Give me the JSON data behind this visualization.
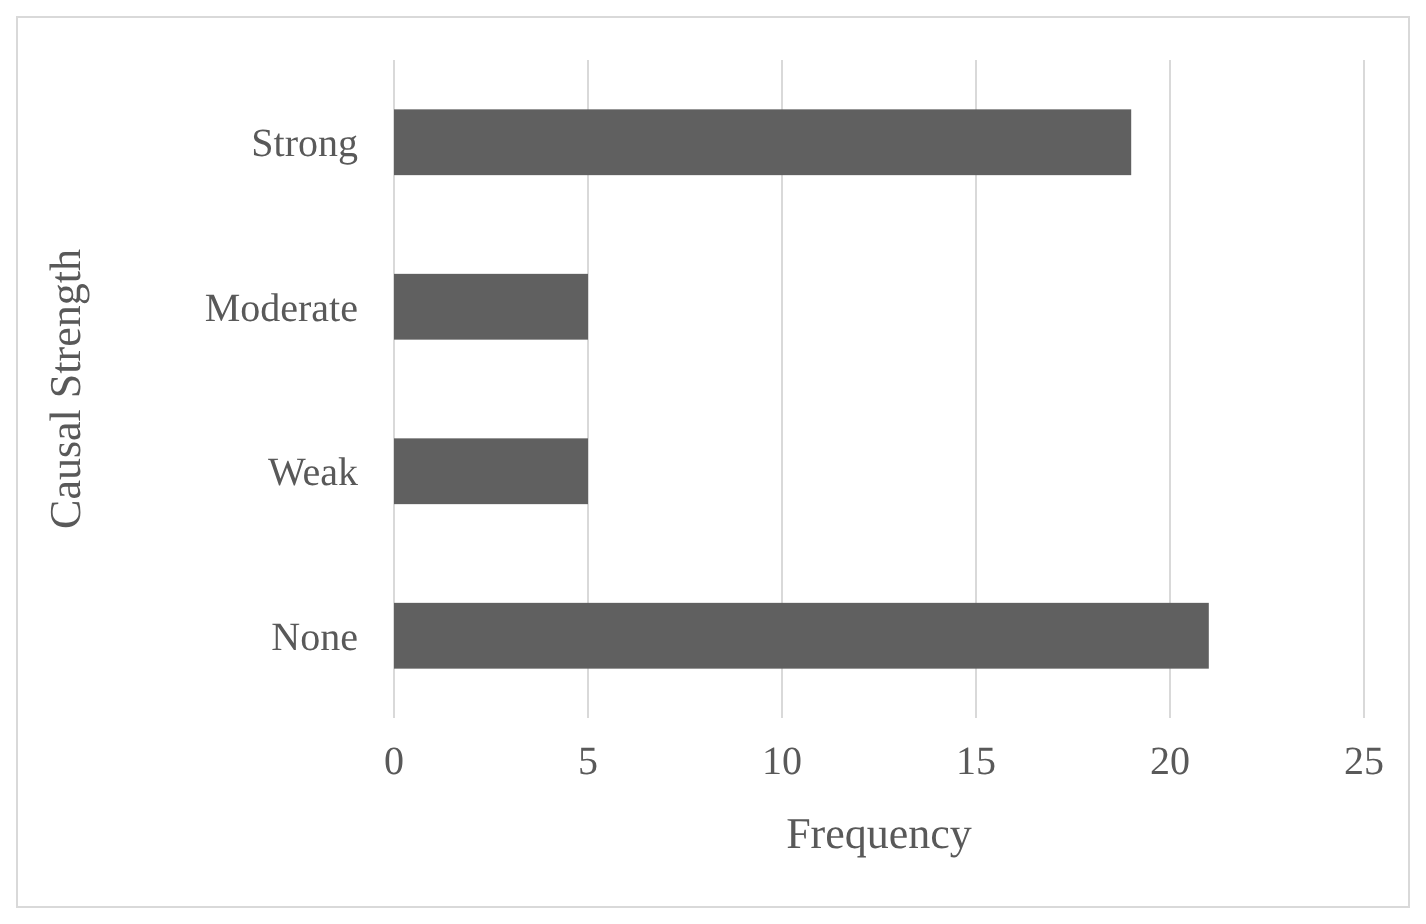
{
  "chart_data": {
    "type": "bar",
    "orientation": "horizontal",
    "xlabel": "Frequency",
    "ylabel": "Causal Strength",
    "categories": [
      "Strong",
      "Moderate",
      "Weak",
      "None"
    ],
    "values": [
      19,
      5,
      5,
      21
    ],
    "color": "#606060",
    "xlim": [
      0,
      25
    ],
    "xticks": [
      0,
      5,
      10,
      15,
      20,
      25
    ],
    "grid": "x"
  }
}
